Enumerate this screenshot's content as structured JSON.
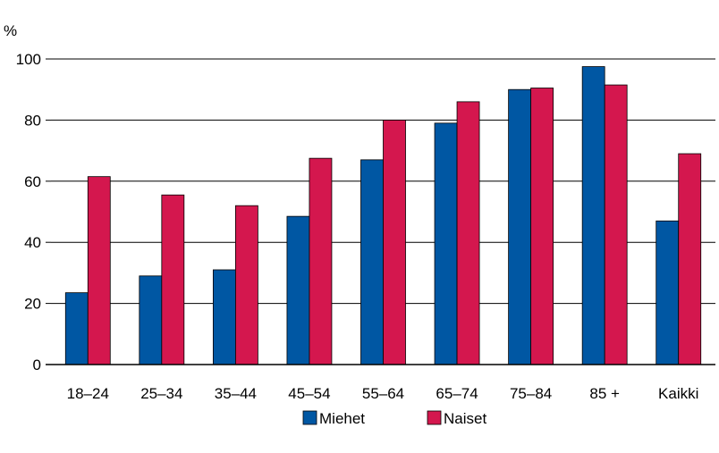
{
  "chart_data": {
    "type": "bar",
    "unit_label": "%",
    "categories": [
      "18–24",
      "25–34",
      "35–44",
      "45–54",
      "55–64",
      "65–74",
      "75–84",
      "85 +",
      "Kaikki"
    ],
    "series": [
      {
        "name": "Miehet",
        "color": "#0057a3",
        "values": [
          23.5,
          29,
          31,
          48.5,
          67,
          79,
          90,
          97.5,
          47
        ]
      },
      {
        "name": "Naiset",
        "color": "#d4174e",
        "values": [
          61.5,
          55.5,
          52,
          67.5,
          80,
          86,
          90.5,
          91.5,
          69
        ]
      }
    ],
    "yticks": [
      0,
      20,
      40,
      60,
      80,
      100
    ],
    "ylim": [
      0,
      100
    ],
    "grid": true,
    "legend_position": "bottom-center"
  }
}
